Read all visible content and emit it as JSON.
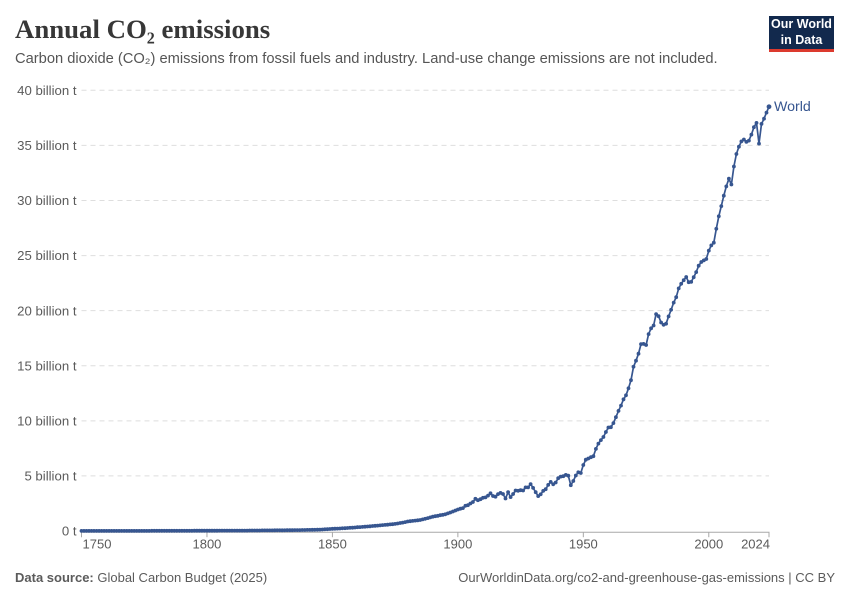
{
  "header": {
    "title": "Annual CO₂ emissions",
    "subtitle": "Carbon dioxide (CO₂) emissions from fossil fuels and industry. Land-use change emissions are not included.",
    "logo": {
      "line1": "Our World",
      "line2": "in Data"
    }
  },
  "footer": {
    "source_label": "Data source:",
    "source_text": " Global Carbon Budget (2025)",
    "right_text": "OurWorldinData.org/co2-and-greenhouse-gas-emissions | CC BY"
  },
  "colors": {
    "line": "#375690",
    "logo_bg": "#12294d",
    "logo_red": "#dc3a2e",
    "grid": "#dedede",
    "axis": "#a8a8a8",
    "tick_label": "#5b5b5b",
    "title": "#373737",
    "subtitle": "#555555"
  },
  "chart_data": {
    "type": "line",
    "title": "Annual CO₂ emissions",
    "xlabel": "",
    "ylabel": "",
    "xlim": [
      1750,
      2024
    ],
    "ylim": [
      0,
      40
    ],
    "grid": true,
    "legend_position": "end-of-line-label",
    "x_ticks": [
      {
        "value": 1750,
        "label": "1750",
        "align": "start"
      },
      {
        "value": 1800,
        "label": "1800",
        "align": "middle"
      },
      {
        "value": 1850,
        "label": "1850",
        "align": "middle"
      },
      {
        "value": 1900,
        "label": "1900",
        "align": "middle"
      },
      {
        "value": 1950,
        "label": "1950",
        "align": "middle"
      },
      {
        "value": 2000,
        "label": "2000",
        "align": "middle"
      },
      {
        "value": 2024,
        "label": "2024",
        "align": "end"
      }
    ],
    "y_ticks": [
      {
        "value": 0,
        "label": "0 t"
      },
      {
        "value": 5,
        "label": "5 billion t"
      },
      {
        "value": 10,
        "label": "10 billion t"
      },
      {
        "value": 15,
        "label": "15 billion t"
      },
      {
        "value": 20,
        "label": "20 billion t"
      },
      {
        "value": 25,
        "label": "25 billion t"
      },
      {
        "value": 30,
        "label": "30 billion t"
      },
      {
        "value": 35,
        "label": "35 billion t"
      },
      {
        "value": 40,
        "label": "40 billion t"
      }
    ],
    "series": [
      {
        "name": "World",
        "unit": "billion tonnes of CO₂",
        "points": [
          [
            1750,
            0.0094
          ],
          [
            1751,
            0.0095
          ],
          [
            1752,
            0.0096
          ],
          [
            1753,
            0.0097
          ],
          [
            1754,
            0.0099
          ],
          [
            1755,
            0.01
          ],
          [
            1756,
            0.0101
          ],
          [
            1757,
            0.0102
          ],
          [
            1758,
            0.0103
          ],
          [
            1759,
            0.0105
          ],
          [
            1760,
            0.0106
          ],
          [
            1761,
            0.0108
          ],
          [
            1762,
            0.0109
          ],
          [
            1763,
            0.0111
          ],
          [
            1764,
            0.0112
          ],
          [
            1765,
            0.0114
          ],
          [
            1766,
            0.0115
          ],
          [
            1767,
            0.0117
          ],
          [
            1768,
            0.0119
          ],
          [
            1769,
            0.012
          ],
          [
            1770,
            0.0122
          ],
          [
            1771,
            0.0124
          ],
          [
            1772,
            0.0126
          ],
          [
            1773,
            0.0128
          ],
          [
            1774,
            0.013
          ],
          [
            1775,
            0.0132
          ],
          [
            1776,
            0.0134
          ],
          [
            1777,
            0.0136
          ],
          [
            1778,
            0.0139
          ],
          [
            1779,
            0.0141
          ],
          [
            1780,
            0.0143
          ],
          [
            1781,
            0.0147
          ],
          [
            1782,
            0.0151
          ],
          [
            1783,
            0.0155
          ],
          [
            1784,
            0.0159
          ],
          [
            1785,
            0.0163
          ],
          [
            1786,
            0.0167
          ],
          [
            1787,
            0.0172
          ],
          [
            1788,
            0.0176
          ],
          [
            1789,
            0.0181
          ],
          [
            1790,
            0.0186
          ],
          [
            1791,
            0.0195
          ],
          [
            1792,
            0.0204
          ],
          [
            1793,
            0.0214
          ],
          [
            1794,
            0.0224
          ],
          [
            1795,
            0.0235
          ],
          [
            1796,
            0.0246
          ],
          [
            1797,
            0.0258
          ],
          [
            1798,
            0.027
          ],
          [
            1799,
            0.0283
          ],
          [
            1800,
            0.0297
          ],
          [
            1801,
            0.0301
          ],
          [
            1802,
            0.0306
          ],
          [
            1803,
            0.0311
          ],
          [
            1804,
            0.0315
          ],
          [
            1805,
            0.032
          ],
          [
            1806,
            0.0326
          ],
          [
            1807,
            0.0333
          ],
          [
            1808,
            0.0339
          ],
          [
            1809,
            0.0346
          ],
          [
            1810,
            0.0353
          ],
          [
            1811,
            0.0361
          ],
          [
            1812,
            0.0368
          ],
          [
            1813,
            0.0376
          ],
          [
            1814,
            0.0385
          ],
          [
            1815,
            0.0393
          ],
          [
            1816,
            0.0407
          ],
          [
            1817,
            0.0423
          ],
          [
            1818,
            0.0438
          ],
          [
            1819,
            0.0454
          ],
          [
            1820,
            0.0471
          ],
          [
            1821,
            0.0486
          ],
          [
            1822,
            0.0502
          ],
          [
            1823,
            0.0519
          ],
          [
            1824,
            0.0536
          ],
          [
            1825,
            0.0553
          ],
          [
            1826,
            0.0571
          ],
          [
            1827,
            0.059
          ],
          [
            1828,
            0.0609
          ],
          [
            1829,
            0.0629
          ],
          [
            1830,
            0.065
          ],
          [
            1831,
            0.0675
          ],
          [
            1832,
            0.0701
          ],
          [
            1833,
            0.0728
          ],
          [
            1834,
            0.0756
          ],
          [
            1835,
            0.0785
          ],
          [
            1836,
            0.0818
          ],
          [
            1837,
            0.0853
          ],
          [
            1838,
            0.0889
          ],
          [
            1839,
            0.0927
          ],
          [
            1840,
            0.0966
          ],
          [
            1841,
            0.102
          ],
          [
            1842,
            0.107
          ],
          [
            1843,
            0.113
          ],
          [
            1844,
            0.119
          ],
          [
            1845,
            0.125
          ],
          [
            1846,
            0.137
          ],
          [
            1847,
            0.15
          ],
          [
            1848,
            0.164
          ],
          [
            1849,
            0.18
          ],
          [
            1850,
            0.197
          ],
          [
            1851,
            0.208
          ],
          [
            1852,
            0.219
          ],
          [
            1853,
            0.231
          ],
          [
            1854,
            0.243
          ],
          [
            1855,
            0.256
          ],
          [
            1856,
            0.271
          ],
          [
            1857,
            0.287
          ],
          [
            1858,
            0.304
          ],
          [
            1859,
            0.322
          ],
          [
            1860,
            0.341
          ],
          [
            1861,
            0.357
          ],
          [
            1862,
            0.374
          ],
          [
            1863,
            0.392
          ],
          [
            1864,
            0.411
          ],
          [
            1865,
            0.431
          ],
          [
            1866,
            0.45
          ],
          [
            1867,
            0.47
          ],
          [
            1868,
            0.49
          ],
          [
            1869,
            0.512
          ],
          [
            1870,
            0.534
          ],
          [
            1871,
            0.554
          ],
          [
            1872,
            0.575
          ],
          [
            1873,
            0.597
          ],
          [
            1874,
            0.62
          ],
          [
            1875,
            0.643
          ],
          [
            1876,
            0.682
          ],
          [
            1877,
            0.722
          ],
          [
            1878,
            0.766
          ],
          [
            1879,
            0.811
          ],
          [
            1880,
            0.86
          ],
          [
            1881,
            0.886
          ],
          [
            1882,
            0.913
          ],
          [
            1883,
            0.941
          ],
          [
            1884,
            0.97
          ],
          [
            1885,
            1.0
          ],
          [
            1886,
            1.05
          ],
          [
            1887,
            1.11
          ],
          [
            1888,
            1.17
          ],
          [
            1889,
            1.23
          ],
          [
            1890,
            1.3
          ],
          [
            1891,
            1.34
          ],
          [
            1892,
            1.38
          ],
          [
            1893,
            1.43
          ],
          [
            1894,
            1.47
          ],
          [
            1895,
            1.52
          ],
          [
            1896,
            1.6
          ],
          [
            1897,
            1.68
          ],
          [
            1898,
            1.77
          ],
          [
            1899,
            1.86
          ],
          [
            1900,
            1.95
          ],
          [
            1901,
            2.02
          ],
          [
            1902,
            2.08
          ],
          [
            1903,
            2.29
          ],
          [
            1904,
            2.34
          ],
          [
            1905,
            2.5
          ],
          [
            1906,
            2.63
          ],
          [
            1907,
            2.92
          ],
          [
            1908,
            2.8
          ],
          [
            1909,
            2.89
          ],
          [
            1910,
            3.01
          ],
          [
            1911,
            3.05
          ],
          [
            1912,
            3.21
          ],
          [
            1913,
            3.42
          ],
          [
            1914,
            3.18
          ],
          [
            1915,
            3.11
          ],
          [
            1916,
            3.35
          ],
          [
            1917,
            3.46
          ],
          [
            1918,
            3.36
          ],
          [
            1919,
            2.95
          ],
          [
            1920,
            3.52
          ],
          [
            1921,
            3.08
          ],
          [
            1922,
            3.36
          ],
          [
            1923,
            3.68
          ],
          [
            1924,
            3.65
          ],
          [
            1925,
            3.7
          ],
          [
            1926,
            3.68
          ],
          [
            1927,
            3.96
          ],
          [
            1928,
            3.96
          ],
          [
            1929,
            4.26
          ],
          [
            1930,
            3.91
          ],
          [
            1931,
            3.52
          ],
          [
            1932,
            3.17
          ],
          [
            1933,
            3.33
          ],
          [
            1934,
            3.64
          ],
          [
            1935,
            3.79
          ],
          [
            1936,
            4.18
          ],
          [
            1937,
            4.46
          ],
          [
            1938,
            4.24
          ],
          [
            1939,
            4.4
          ],
          [
            1940,
            4.79
          ],
          [
            1941,
            4.94
          ],
          [
            1942,
            4.97
          ],
          [
            1943,
            5.09
          ],
          [
            1944,
            5.02
          ],
          [
            1945,
            4.16
          ],
          [
            1946,
            4.54
          ],
          [
            1947,
            5.04
          ],
          [
            1948,
            5.33
          ],
          [
            1949,
            5.26
          ],
          [
            1950,
            5.99
          ],
          [
            1951,
            6.47
          ],
          [
            1952,
            6.58
          ],
          [
            1953,
            6.7
          ],
          [
            1954,
            6.79
          ],
          [
            1955,
            7.45
          ],
          [
            1956,
            7.93
          ],
          [
            1957,
            8.25
          ],
          [
            1958,
            8.53
          ],
          [
            1959,
            8.99
          ],
          [
            1960,
            9.39
          ],
          [
            1961,
            9.42
          ],
          [
            1962,
            9.79
          ],
          [
            1963,
            10.33
          ],
          [
            1964,
            10.9
          ],
          [
            1965,
            11.38
          ],
          [
            1966,
            11.95
          ],
          [
            1967,
            12.32
          ],
          [
            1968,
            12.95
          ],
          [
            1969,
            13.69
          ],
          [
            1970,
            14.9
          ],
          [
            1971,
            15.46
          ],
          [
            1972,
            16.09
          ],
          [
            1973,
            16.96
          ],
          [
            1974,
            16.98
          ],
          [
            1975,
            16.88
          ],
          [
            1976,
            17.87
          ],
          [
            1977,
            18.4
          ],
          [
            1978,
            18.65
          ],
          [
            1979,
            19.69
          ],
          [
            1980,
            19.5
          ],
          [
            1981,
            18.92
          ],
          [
            1982,
            18.72
          ],
          [
            1983,
            18.82
          ],
          [
            1984,
            19.48
          ],
          [
            1985,
            20.08
          ],
          [
            1986,
            20.73
          ],
          [
            1987,
            21.22
          ],
          [
            1988,
            22.02
          ],
          [
            1989,
            22.44
          ],
          [
            1990,
            22.76
          ],
          [
            1991,
            23.05
          ],
          [
            1992,
            22.58
          ],
          [
            1993,
            22.61
          ],
          [
            1994,
            23.04
          ],
          [
            1995,
            23.5
          ],
          [
            1996,
            24.08
          ],
          [
            1997,
            24.42
          ],
          [
            1998,
            24.56
          ],
          [
            1999,
            24.69
          ],
          [
            2000,
            25.45
          ],
          [
            2001,
            25.92
          ],
          [
            2002,
            26.17
          ],
          [
            2003,
            27.43
          ],
          [
            2004,
            28.56
          ],
          [
            2005,
            29.49
          ],
          [
            2006,
            30.43
          ],
          [
            2007,
            31.28
          ],
          [
            2008,
            31.98
          ],
          [
            2009,
            31.45
          ],
          [
            2010,
            33.08
          ],
          [
            2011,
            34.22
          ],
          [
            2012,
            34.88
          ],
          [
            2013,
            35.36
          ],
          [
            2014,
            35.53
          ],
          [
            2015,
            35.32
          ],
          [
            2016,
            35.43
          ],
          [
            2017,
            35.98
          ],
          [
            2018,
            36.65
          ],
          [
            2019,
            37.04
          ],
          [
            2020,
            35.16
          ],
          [
            2021,
            36.95
          ],
          [
            2022,
            37.42
          ],
          [
            2023,
            37.98
          ],
          [
            2024,
            38.51
          ]
        ]
      }
    ]
  }
}
